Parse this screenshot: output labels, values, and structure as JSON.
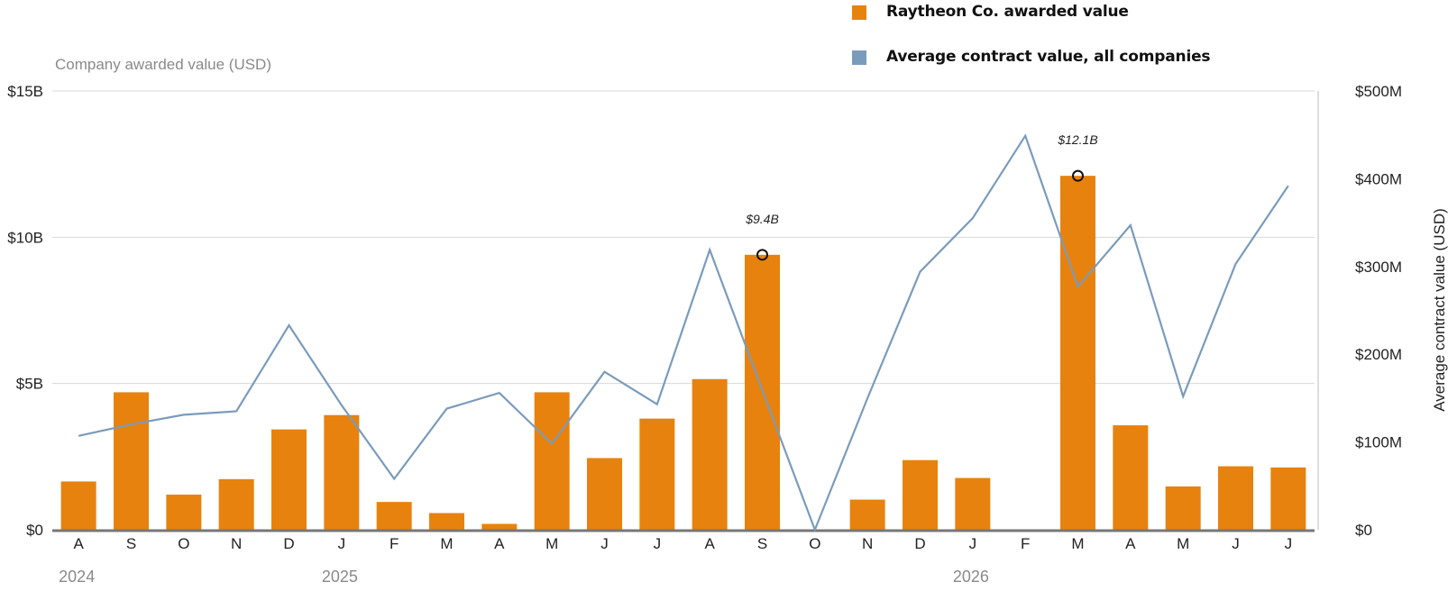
{
  "legend": {
    "bar_label": "Raytheon Co. awarded value",
    "line_label": "Average contract value, all companies"
  },
  "colors": {
    "bar": "#E8820E",
    "line": "#7B9BBB",
    "grid": "#D8D8D8",
    "axis": "#777777",
    "text": "#222222",
    "muted": "#8A8A8A"
  },
  "chart_data": {
    "type": "bar",
    "title": "",
    "left_axis_label": "Company awarded value (USD)",
    "right_axis_label": "Average contract value (USD)",
    "left_ticks": [
      {
        "value": 0,
        "label": "$0"
      },
      {
        "value": 5,
        "label": "$5B"
      },
      {
        "value": 10,
        "label": "$10B"
      },
      {
        "value": 15,
        "label": "$15B"
      }
    ],
    "right_ticks": [
      {
        "value": 0,
        "label": "$0"
      },
      {
        "value": 100,
        "label": "$100M"
      },
      {
        "value": 200,
        "label": "$200M"
      },
      {
        "value": 300,
        "label": "$300M"
      },
      {
        "value": 400,
        "label": "$400M"
      },
      {
        "value": 500,
        "label": "$500M"
      }
    ],
    "left_ylim": [
      0,
      15
    ],
    "right_ylim": [
      0,
      500
    ],
    "grid": true,
    "legend_position": "top-center",
    "categories": [
      "A",
      "S",
      "O",
      "N",
      "D",
      "J",
      "F",
      "M",
      "A",
      "M",
      "J",
      "J",
      "A",
      "S",
      "O",
      "N",
      "D",
      "J",
      "F",
      "M",
      "A",
      "M",
      "J",
      "J"
    ],
    "year_labels": [
      {
        "index": 0,
        "label": "2024"
      },
      {
        "index": 5,
        "label": "2025"
      },
      {
        "index": 17,
        "label": "2026"
      }
    ],
    "series": [
      {
        "name": "Raytheon Co. awarded value",
        "type": "bar",
        "axis": "left",
        "unit": "billion USD",
        "values": [
          1.65,
          4.7,
          1.2,
          1.73,
          3.43,
          3.92,
          0.95,
          0.57,
          0.2,
          4.7,
          2.45,
          3.8,
          5.15,
          9.4,
          0.0,
          1.03,
          2.38,
          1.77,
          0.0,
          12.1,
          3.57,
          1.48,
          2.17,
          2.13
        ]
      },
      {
        "name": "Average contract value, all companies",
        "type": "line",
        "axis": "right",
        "unit": "million USD",
        "values": [
          107,
          120,
          131,
          135,
          233,
          142,
          58,
          138,
          156,
          98,
          180,
          143,
          319,
          159,
          0,
          150,
          294,
          355,
          449,
          277,
          347,
          152,
          303,
          392
        ]
      }
    ],
    "annotations": [
      {
        "index": 13,
        "value": 9.4,
        "label": "$9.4B"
      },
      {
        "index": 19,
        "value": 12.1,
        "label": "$12.1B"
      }
    ]
  }
}
